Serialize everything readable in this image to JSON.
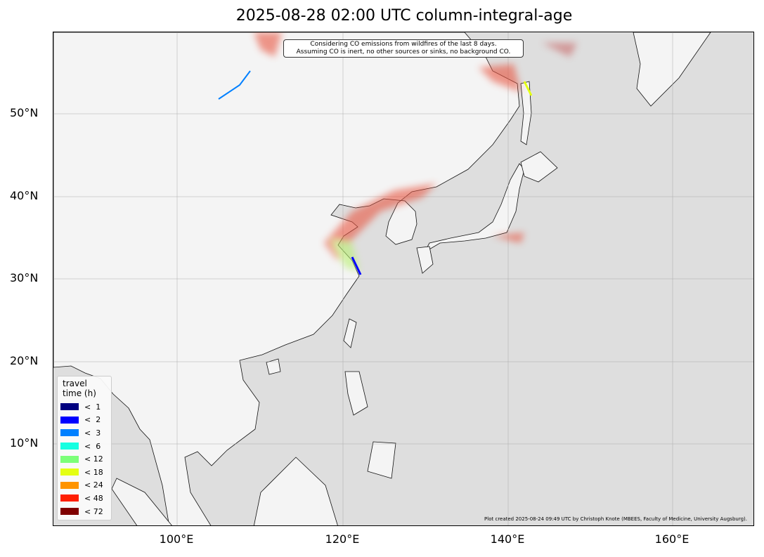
{
  "title": "2025-08-28 02:00 UTC column-integral-age",
  "note": [
    "Considering CO emissions from wildfires of the last 8 days.",
    "Assuming CO is inert, no other sources or sinks, no background CO."
  ],
  "credit": "Plot created 2025-08-24 09:49 UTC by Christoph Knote (MBEES, Faculty of Medicine, University Augsburg).",
  "y_ticks": [
    "50°N",
    "40°N",
    "30°N",
    "20°N",
    "10°N"
  ],
  "x_ticks": [
    "100°E",
    "120°E",
    "140°E",
    "160°E"
  ],
  "extent": {
    "lon": [
      85,
      170
    ],
    "lat": [
      0,
      60
    ]
  },
  "colors": {
    "ocean": "#dedede",
    "land": "#f4f4f4",
    "plume": "#e8553f"
  },
  "legend": {
    "title": [
      "travel",
      "time (h)"
    ],
    "items": [
      {
        "label": "<  1",
        "color": "#00007f"
      },
      {
        "label": "<  2",
        "color": "#0000ff"
      },
      {
        "label": "<  3",
        "color": "#0080ff"
      },
      {
        "label": "<  6",
        "color": "#15ffe1"
      },
      {
        "label": "< 12",
        "color": "#7cff79"
      },
      {
        "label": "< 18",
        "color": "#e4ff13"
      },
      {
        "label": "< 24",
        "color": "#ff9400"
      },
      {
        "label": "< 48",
        "color": "#ff1e00"
      },
      {
        "label": "< 72",
        "color": "#7f0000"
      }
    ]
  }
}
